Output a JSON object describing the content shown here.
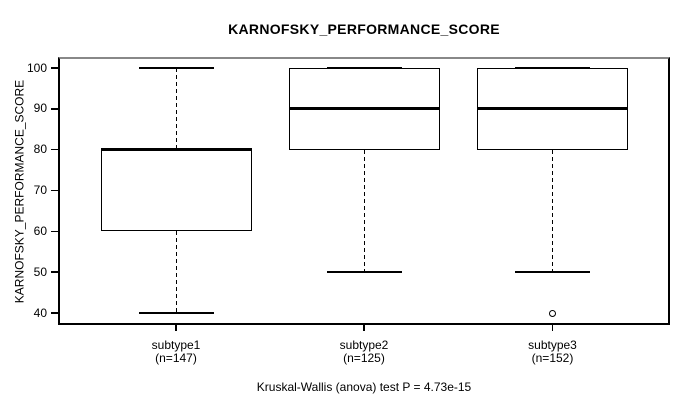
{
  "chart_data": {
    "type": "box",
    "title": "KARNOFSKY_PERFORMANCE_SCORE",
    "ylabel": "KARNOFSKY_PERFORMANCE_SCORE",
    "caption": "Kruskal-Wallis (anova) test P = 4.73e-15",
    "ylim": [
      40,
      100
    ],
    "yticks": [
      40,
      50,
      60,
      70,
      80,
      90,
      100
    ],
    "grid": false,
    "legend": false,
    "colors": {
      "line": "#000000",
      "box_fill": "#ffffff",
      "background": "#ffffff",
      "frame_top": "#888888"
    },
    "groups": [
      {
        "label": "subtype1",
        "n_label": "(n=147)",
        "n": 147,
        "whisker_low": 40,
        "q1": 60,
        "median": 80,
        "q3": 80,
        "whisker_high": 100,
        "outliers": []
      },
      {
        "label": "subtype2",
        "n_label": "(n=125)",
        "n": 125,
        "whisker_low": 50,
        "q1": 80,
        "median": 90,
        "q3": 100,
        "whisker_high": 100,
        "outliers": []
      },
      {
        "label": "subtype3",
        "n_label": "(n=152)",
        "n": 152,
        "whisker_low": 50,
        "q1": 80,
        "median": 90,
        "q3": 100,
        "whisker_high": 100,
        "outliers": [
          40
        ]
      }
    ]
  }
}
